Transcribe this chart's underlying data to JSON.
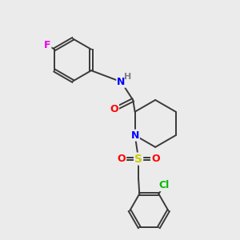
{
  "background_color": "#ebebeb",
  "bond_color": "#3a3a3a",
  "atom_colors": {
    "F": "#ee00ee",
    "N": "#0000ff",
    "H": "#808080",
    "O": "#ff0000",
    "S": "#cccc00",
    "Cl": "#00bb00"
  },
  "figsize": [
    3.0,
    3.0
  ],
  "dpi": 100
}
